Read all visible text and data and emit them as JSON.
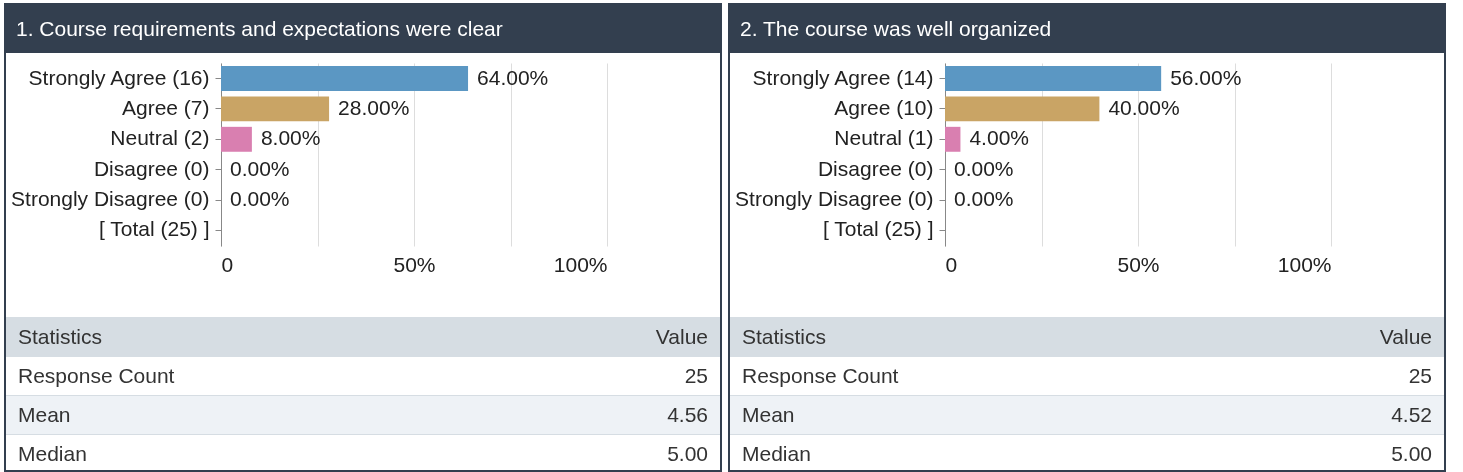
{
  "chart_data": [
    {
      "type": "bar",
      "orientation": "horizontal",
      "title": "1. Course requirements and expectations were clear",
      "categories": [
        "Strongly Agree (16)",
        "Agree (7)",
        "Neutral (2)",
        "Disagree (0)",
        "Strongly Disagree (0)",
        "[ Total (25) ]"
      ],
      "values": [
        64,
        28,
        8,
        0,
        0,
        null
      ],
      "colors": [
        "#5b97c3",
        "#c9a465",
        "#d97fb0",
        null,
        null,
        null
      ],
      "value_labels": [
        "64.00%",
        "28.00%",
        "8.00%",
        "0.00%",
        "0.00%",
        null
      ],
      "xlim": [
        0,
        100
      ],
      "xticks": [
        0,
        {
          "value": 25,
          "label": null
        },
        {
          "value": 50,
          "label": "50%"
        },
        {
          "value": 75,
          "label": null
        },
        {
          "value": 100,
          "label": "100%"
        }
      ],
      "grid": "x",
      "annotations": [
        "Statistics",
        "Value",
        "Response Count",
        "25",
        "Mean",
        "4.56",
        "Median",
        "5.00"
      ]
    },
    {
      "type": "bar",
      "orientation": "horizontal",
      "title": "2. The course was well organized",
      "categories": [
        "Strongly Agree (14)",
        "Agree (10)",
        "Neutral (1)",
        "Disagree (0)",
        "Strongly Disagree (0)",
        "[ Total (25) ]"
      ],
      "values": [
        56,
        40,
        4,
        0,
        0,
        null
      ],
      "annotations": [
        "Statistics",
        "Value",
        "Response Count",
        "25",
        "Mean",
        "4.52",
        "Median",
        "5.00"
      ],
      "colors": [
        "#5b97c3",
        "#c9a465",
        "#d97fb0",
        null,
        null,
        null
      ],
      "value_labels": [
        "56.00%",
        "40.00%",
        "4.00%",
        "0.00%",
        "0.00%",
        null
      ],
      "xlim": [
        0,
        100
      ],
      "xticks": [
        0,
        {
          "value": 25,
          "label": null
        },
        {
          "value": 50,
          "label": "50%"
        },
        {
          "value": 75,
          "label": null
        },
        {
          "value": 100,
          "label": "100%"
        }
      ],
      "grid": "x"
    }
  ]
}
